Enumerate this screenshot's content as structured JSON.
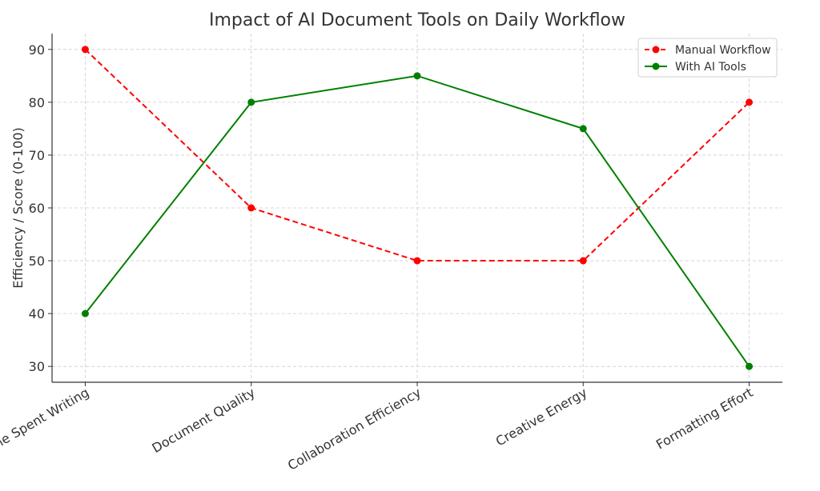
{
  "chart_data": {
    "type": "line",
    "title": "Impact of AI Document Tools on Daily Workflow",
    "xlabel": "",
    "ylabel": "Efficiency / Score (0-100)",
    "categories": [
      "Time Spent Writing",
      "Document Quality",
      "Collaboration Efficiency",
      "Creative Energy",
      "Formatting Effort"
    ],
    "series": [
      {
        "name": "Manual Workflow",
        "values": [
          90,
          60,
          50,
          50,
          80
        ],
        "color": "#ff0000",
        "linestyle": "dashed",
        "marker": "circle"
      },
      {
        "name": "With AI Tools",
        "values": [
          40,
          80,
          85,
          75,
          30
        ],
        "color": "#008000",
        "linestyle": "solid",
        "marker": "circle"
      }
    ],
    "ylim": [
      27,
      93
    ],
    "yticks": [
      30,
      40,
      50,
      60,
      70,
      80,
      90
    ],
    "grid": true,
    "legend_position": "top-right"
  }
}
